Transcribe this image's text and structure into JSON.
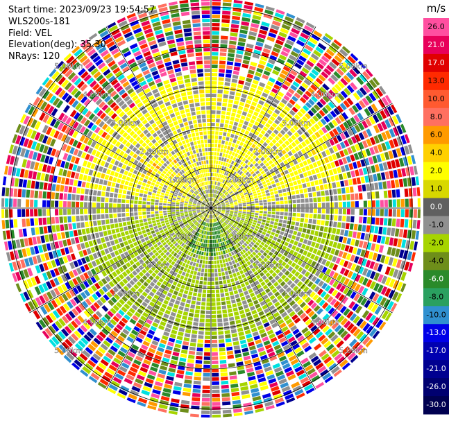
{
  "header": {
    "start_time": "Start time: 2023/09/23 19:54:57",
    "instrument": "WLS200s-181",
    "field": "Field: VEL",
    "elevation": "Elevation(deg): 35.30",
    "nrays": "NRays: 120"
  },
  "chart_data": {
    "type": "heatmap",
    "subtype": "polar-ppi",
    "field": "VEL",
    "units": "m/s",
    "range_rings": [
      "1.00km",
      "2.00km",
      "3.00km",
      "4.00km",
      "5.00km"
    ],
    "n_rays": 120,
    "colorbar": {
      "label": "m/s",
      "ticks": [
        26.0,
        21.0,
        17.0,
        13.0,
        10.0,
        8.0,
        6.0,
        4.0,
        2.0,
        1.0,
        0.0,
        -1.0,
        -2.0,
        -4.0,
        -6.0,
        -8.0,
        -10.0,
        -13.0,
        -17.0,
        -21.0,
        -26.0,
        -30.0
      ],
      "tick_labels": [
        "26.0",
        "21.0",
        "17.0",
        "13.0",
        "10.0",
        "8.0",
        "6.0",
        "4.0",
        "2.0",
        "1.0",
        "0.0",
        "-1.0",
        "-2.0",
        "-4.0",
        "-6.0",
        "-8.0",
        "-10.0",
        "-13.0",
        "-17.0",
        "-21.0",
        "-26.0",
        "-30.0"
      ],
      "colors": [
        "#ff4fa0",
        "#e8005a",
        "#e00000",
        "#ff2a00",
        "#ff5a30",
        "#ff7060",
        "#ff9a00",
        "#ffd000",
        "#ffff00",
        "#d8d800",
        "#606060",
        "#909090",
        "#a6d400",
        "#6e8e1a",
        "#2a8a2a",
        "#2aa060",
        "#3090d0",
        "#0000e8",
        "#0000b0",
        "#000090",
        "#000070",
        "#000050"
      ]
    }
  }
}
